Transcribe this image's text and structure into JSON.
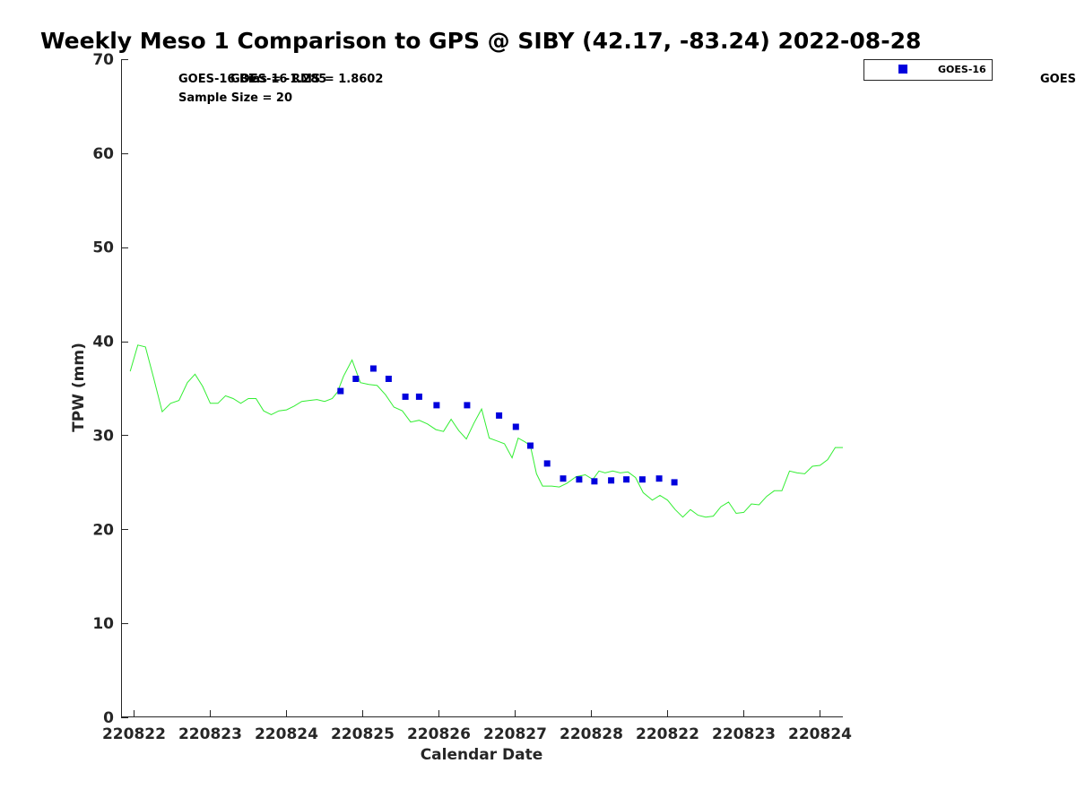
{
  "chart_data": {
    "type": "scatter",
    "title": "Weekly Meso 1 Comparison to GPS @ SIBY (42.17, -83.24) 2022-08-28",
    "xlabel": "Calendar Date",
    "ylabel": "TPW (mm)",
    "ylim": [
      0,
      70
    ],
    "xlim": [
      -0.17,
      9.3
    ],
    "yticks": [
      0,
      10,
      20,
      30,
      40,
      50,
      60,
      70
    ],
    "xtick_positions": [
      0,
      1,
      2,
      3,
      4,
      5,
      6,
      7,
      8,
      9
    ],
    "xtick_labels": [
      "220822",
      "220823",
      "220824",
      "220825",
      "220826",
      "220827",
      "220828",
      "220822",
      "220823",
      "220824"
    ],
    "grid": false,
    "legend_position": "top-right, outside axes",
    "annotations": [
      "GOES-16 Bias = -1.285",
      "GOES-16 RMS = 1.8602",
      "Sample Size = 20",
      "GOES-"
    ],
    "series": [
      {
        "name": "GOES-16",
        "kind": "scatter",
        "marker": "square",
        "color": "#0000dd",
        "x": [
          2.71,
          2.91,
          3.14,
          3.34,
          3.56,
          3.74,
          3.97,
          4.37,
          4.79,
          5.01,
          5.2,
          5.42,
          5.63,
          5.84,
          6.04,
          6.26,
          6.46,
          6.67,
          6.89,
          7.09
        ],
        "y": [
          34.7,
          36.0,
          37.1,
          36.0,
          34.1,
          34.1,
          33.2,
          33.2,
          32.1,
          30.9,
          28.9,
          27.0,
          25.4,
          25.3,
          25.1,
          25.2,
          25.3,
          25.3,
          25.4,
          25.0
        ]
      },
      {
        "kind": "line",
        "color": "#33ee33",
        "x": [
          -0.05,
          0.05,
          0.15,
          0.26,
          0.37,
          0.48,
          0.59,
          0.7,
          0.8,
          0.9,
          1.0,
          1.1,
          1.2,
          1.3,
          1.4,
          1.5,
          1.6,
          1.7,
          1.8,
          1.9,
          2.0,
          2.1,
          2.2,
          2.3,
          2.4,
          2.5,
          2.6,
          2.67,
          2.75,
          2.86,
          2.97,
          3.08,
          3.19,
          3.3,
          3.41,
          3.52,
          3.63,
          3.74,
          3.85,
          3.96,
          4.06,
          4.16,
          4.26,
          4.36,
          4.46,
          4.56,
          4.66,
          4.76,
          4.86,
          4.96,
          5.04,
          5.13,
          5.2,
          5.28,
          5.36,
          5.48,
          5.58,
          5.68,
          5.8,
          5.92,
          6.02,
          6.1,
          6.18,
          6.28,
          6.38,
          6.48,
          6.58,
          6.68,
          6.8,
          6.9,
          7.0,
          7.1,
          7.2,
          7.3,
          7.4,
          7.5,
          7.6,
          7.7,
          7.8,
          7.9,
          8.0,
          8.1,
          8.2,
          8.3,
          8.4,
          8.5,
          8.6,
          8.7,
          8.8,
          8.9,
          9.0,
          9.1,
          9.2,
          9.3
        ],
        "y": [
          36.8,
          39.6,
          39.4,
          36.0,
          32.5,
          33.4,
          33.7,
          35.6,
          36.5,
          35.2,
          33.4,
          33.4,
          34.2,
          33.9,
          33.4,
          33.9,
          33.9,
          32.6,
          32.2,
          32.6,
          32.7,
          33.1,
          33.6,
          33.7,
          33.8,
          33.6,
          33.9,
          34.6,
          36.3,
          38.0,
          35.6,
          35.4,
          35.3,
          34.3,
          33.0,
          32.6,
          31.4,
          31.6,
          31.2,
          30.6,
          30.4,
          31.7,
          30.5,
          29.6,
          31.3,
          32.8,
          29.7,
          29.4,
          29.1,
          27.6,
          29.7,
          29.3,
          28.9,
          25.9,
          24.6,
          24.6,
          24.5,
          24.9,
          25.6,
          25.8,
          25.3,
          26.2,
          26.0,
          26.2,
          26.0,
          26.1,
          25.5,
          23.9,
          23.1,
          23.6,
          23.1,
          22.1,
          21.3,
          22.1,
          21.5,
          21.3,
          21.4,
          22.4,
          22.9,
          21.7,
          21.8,
          22.7,
          22.6,
          23.5,
          24.1,
          24.1,
          26.2,
          26.0,
          25.9,
          26.7,
          26.8,
          27.4,
          28.7,
          28.7
        ]
      }
    ]
  }
}
